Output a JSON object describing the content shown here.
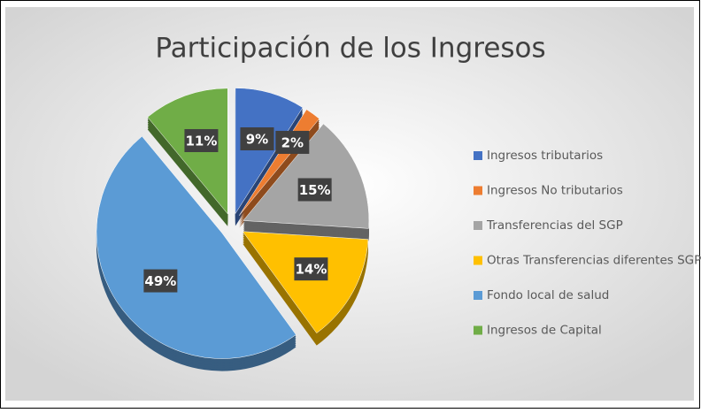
{
  "chart_data": {
    "type": "pie",
    "title": "Participación de los Ingresos",
    "categories": [
      "Ingresos tributarios",
      "Ingresos No tributarios",
      "Transferencias del SGP",
      "Otras Transferencias diferentes SGP",
      "Fondo local de salud",
      "Ingresos de Capital"
    ],
    "values": [
      9,
      2,
      15,
      14,
      49,
      11
    ],
    "value_labels": [
      "9%",
      "2%",
      "15%",
      "14%",
      "49%",
      "11%"
    ],
    "colors": [
      "#4472c4",
      "#ed7d31",
      "#a5a5a5",
      "#ffc000",
      "#5b9bd5",
      "#70ad47"
    ],
    "legend": "right"
  }
}
